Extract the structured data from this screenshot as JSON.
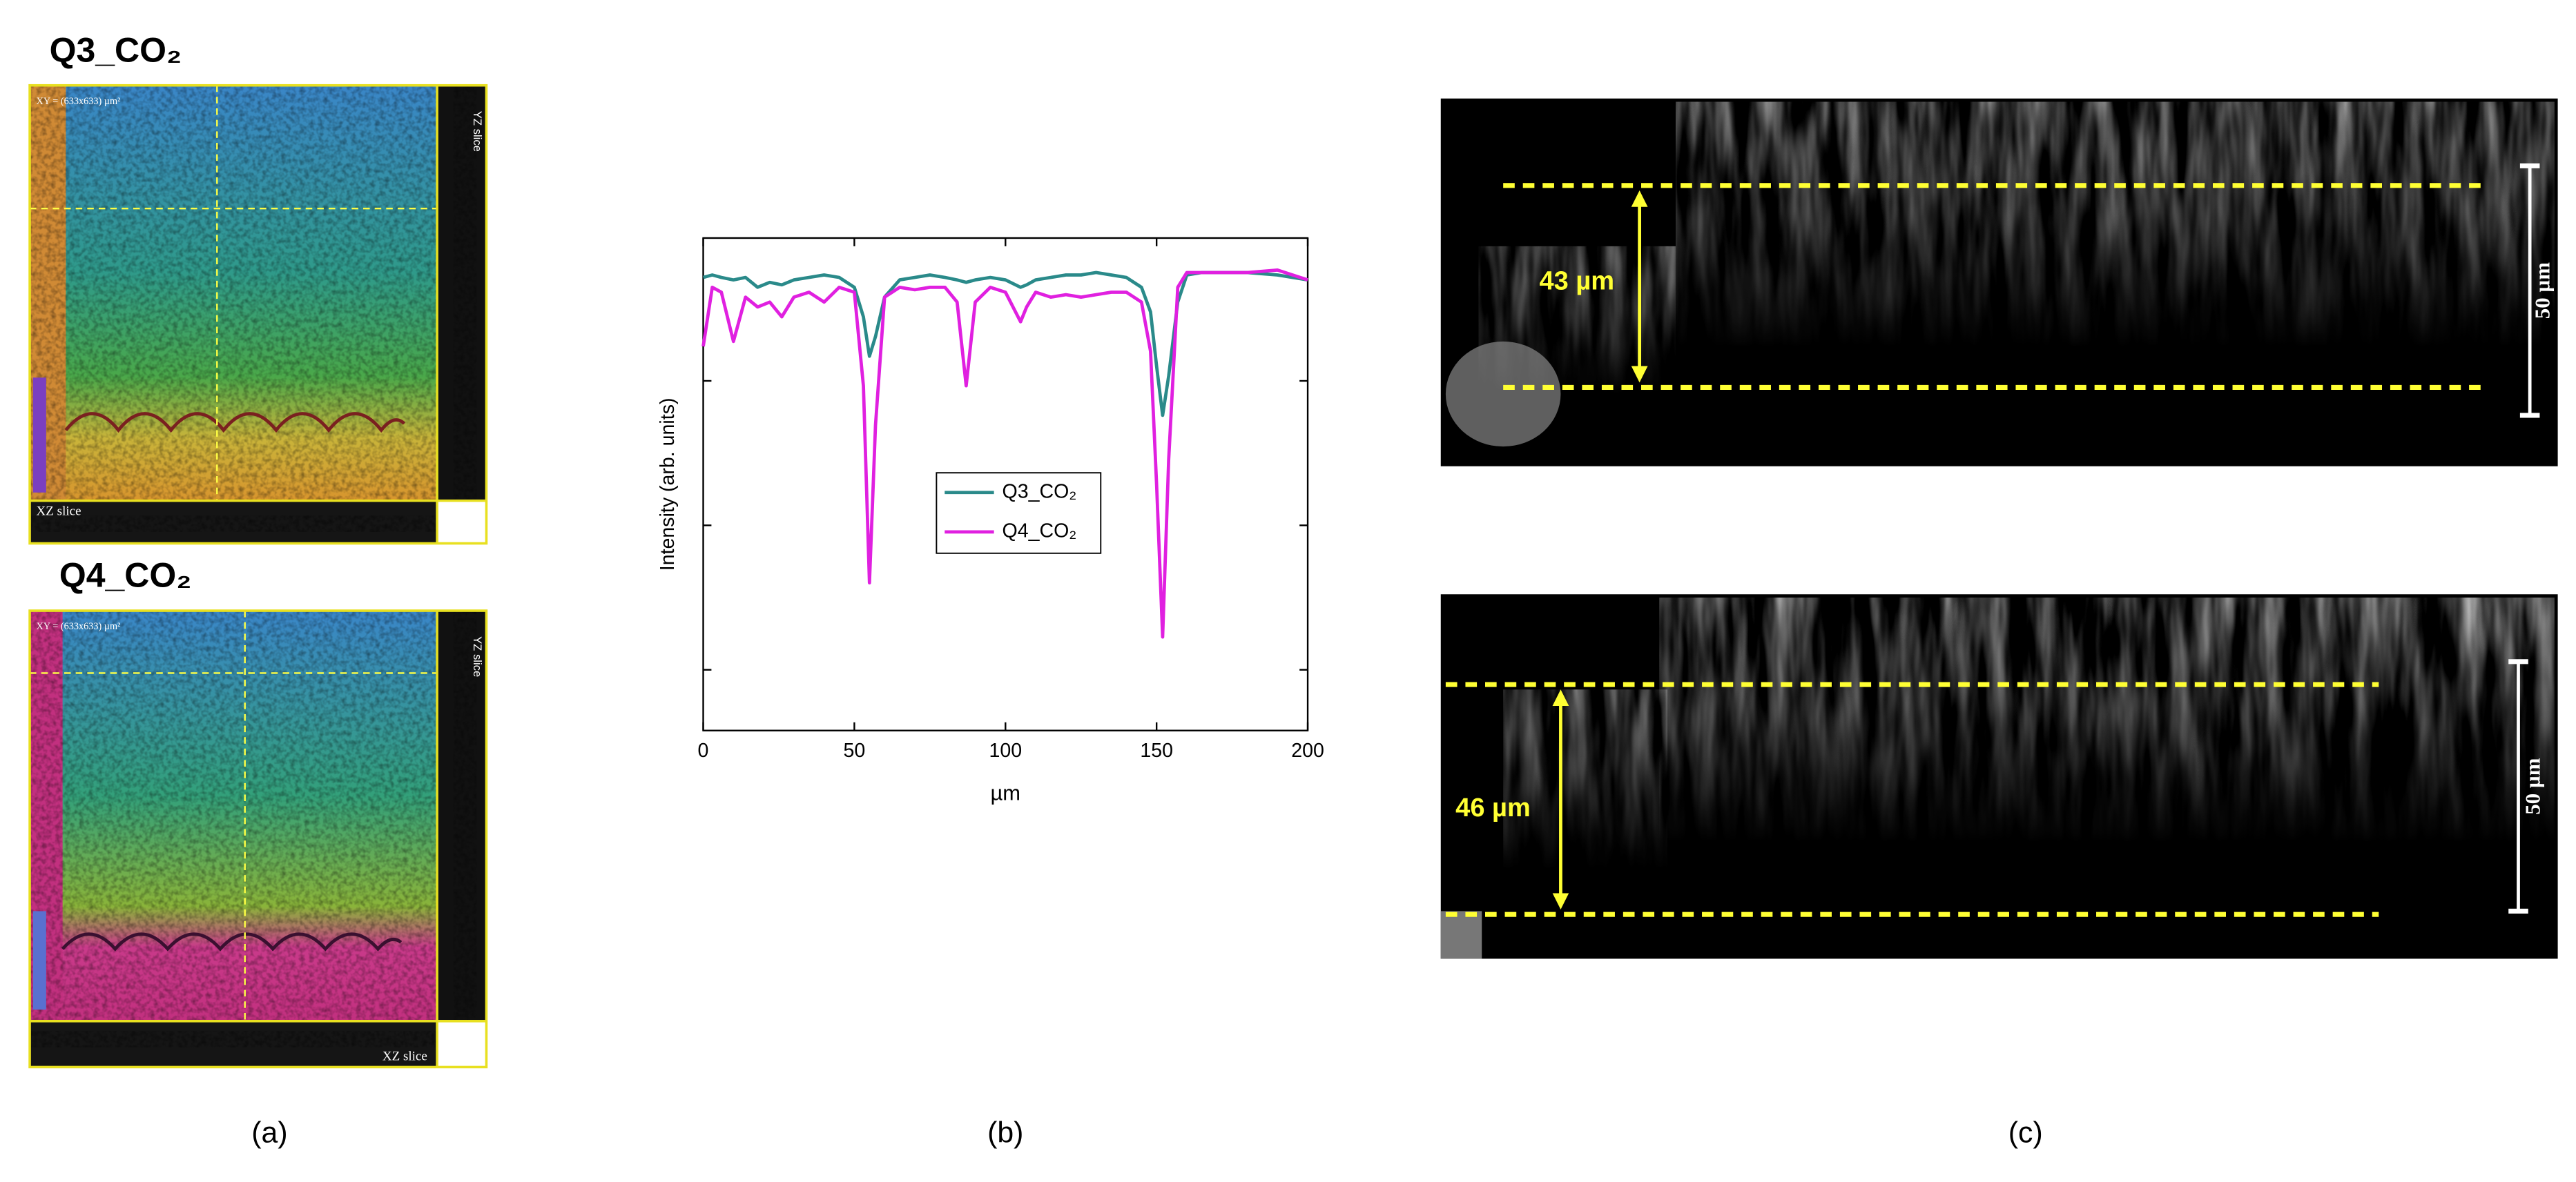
{
  "panel_a": {
    "images": [
      {
        "title": "Q3_CO₂",
        "xy_label": "XY = (633x633) µm²",
        "yz_label": "YZ slice",
        "xz_label": "XZ slice"
      },
      {
        "title": "Q4_CO₂",
        "xy_label": "XY = (633x633) µm²",
        "yz_label": "YZ slice",
        "xz_label": "XZ slice"
      }
    ]
  },
  "panel_c": {
    "images": [
      {
        "thickness": "43 µm",
        "scale": "50 µm"
      },
      {
        "thickness": "46 µm",
        "scale": "50 µm"
      }
    ]
  },
  "captions": [
    "(a)",
    "(b)",
    "(c)"
  ],
  "chart_data": {
    "type": "line",
    "xlabel": "µm",
    "ylabel": "Intensity (arb. units)",
    "x": [
      0,
      3,
      6,
      10,
      14,
      18,
      22,
      26,
      30,
      35,
      40,
      45,
      50,
      53,
      55,
      57,
      60,
      65,
      70,
      75,
      80,
      84,
      87,
      90,
      95,
      100,
      105,
      107,
      110,
      115,
      120,
      125,
      130,
      135,
      140,
      145,
      148,
      150,
      152,
      154,
      157,
      160,
      165,
      170,
      180,
      190,
      200
    ],
    "series": [
      {
        "name": "Q3_CO₂",
        "color": "#2a8a8a",
        "values": [
          0.92,
          0.925,
          0.92,
          0.915,
          0.92,
          0.9,
          0.91,
          0.905,
          0.915,
          0.92,
          0.925,
          0.92,
          0.9,
          0.84,
          0.76,
          0.8,
          0.88,
          0.915,
          0.92,
          0.925,
          0.92,
          0.915,
          0.91,
          0.915,
          0.92,
          0.915,
          0.9,
          0.905,
          0.915,
          0.92,
          0.925,
          0.925,
          0.93,
          0.925,
          0.92,
          0.9,
          0.85,
          0.74,
          0.64,
          0.72,
          0.87,
          0.925,
          0.93,
          0.93,
          0.93,
          0.925,
          0.915
        ]
      },
      {
        "name": "Q4_CO₂",
        "color": "#e020e0",
        "values": [
          0.78,
          0.9,
          0.89,
          0.79,
          0.88,
          0.86,
          0.87,
          0.84,
          0.88,
          0.89,
          0.87,
          0.9,
          0.89,
          0.7,
          0.3,
          0.62,
          0.88,
          0.9,
          0.895,
          0.9,
          0.9,
          0.87,
          0.7,
          0.87,
          0.9,
          0.89,
          0.83,
          0.86,
          0.89,
          0.88,
          0.885,
          0.88,
          0.885,
          0.89,
          0.89,
          0.87,
          0.77,
          0.5,
          0.19,
          0.55,
          0.9,
          0.93,
          0.93,
          0.93,
          0.93,
          0.935,
          0.915
        ]
      }
    ],
    "xlim": [
      0,
      200
    ],
    "xticks": [
      0,
      50,
      100,
      150,
      200
    ],
    "ylim": [
      0,
      1
    ]
  }
}
